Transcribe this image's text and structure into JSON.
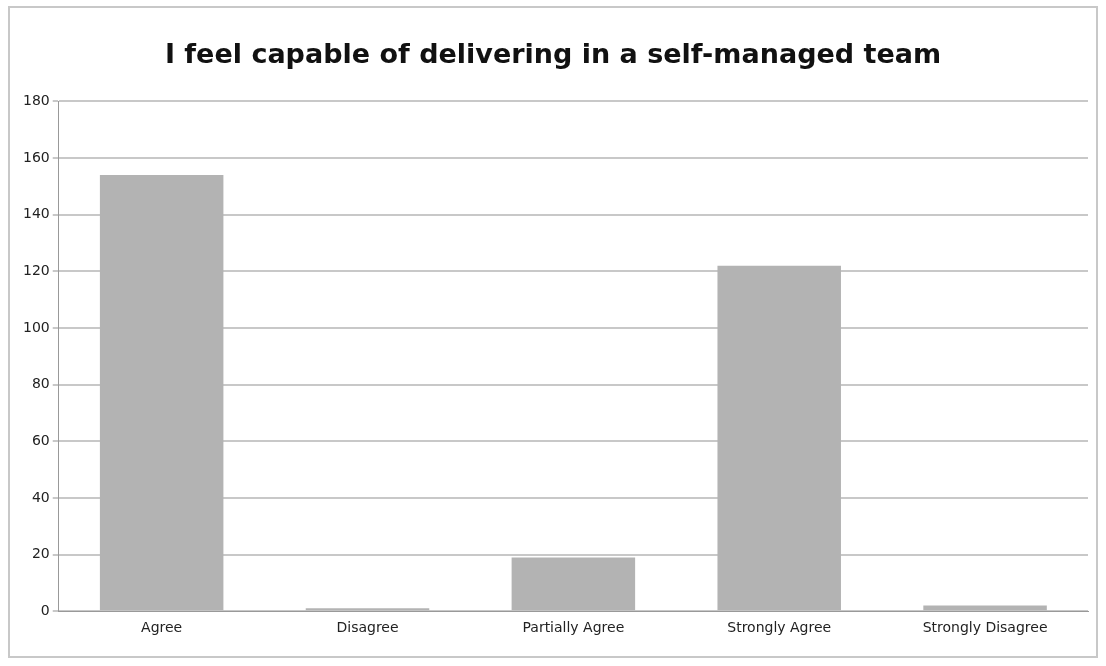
{
  "chart_data": {
    "type": "bar",
    "title": "I feel capable of delivering in a self-managed team",
    "categories": [
      "Agree",
      "Disagree",
      "Partially Agree",
      "Strongly Agree",
      "Strongly Disagree"
    ],
    "values": [
      154,
      1,
      19,
      122,
      2
    ],
    "color": "#b3b3b3",
    "ylim": [
      0,
      180
    ],
    "yticks": [
      0,
      20,
      40,
      60,
      80,
      100,
      120,
      140,
      160,
      180
    ],
    "grid": "y",
    "legend": false
  }
}
